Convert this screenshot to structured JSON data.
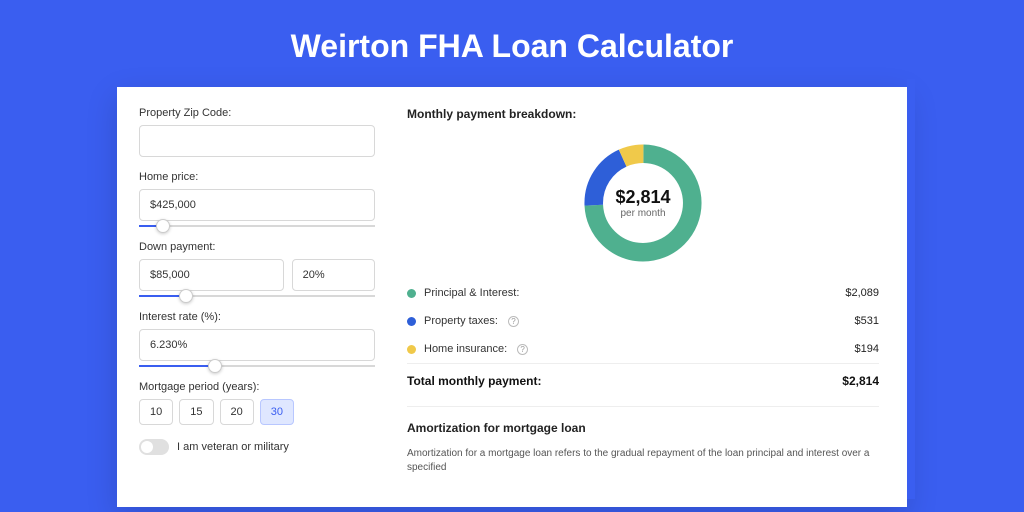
{
  "title": "Weirton FHA Loan Calculator",
  "colors": {
    "page_bg": "#3a5ef0",
    "card_bg": "#ffffff",
    "text": "#333333",
    "border": "#d8d8d8"
  },
  "form": {
    "zip": {
      "label": "Property Zip Code:",
      "value": ""
    },
    "price": {
      "label": "Home price:",
      "value": "$425,000",
      "slider_pct": 10
    },
    "down": {
      "label": "Down payment:",
      "value": "$85,000",
      "pct_value": "20%",
      "slider_pct": 20
    },
    "rate": {
      "label": "Interest rate (%):",
      "value": "6.230%",
      "slider_pct": 32
    },
    "period": {
      "label": "Mortgage period (years):",
      "options": [
        "10",
        "15",
        "20",
        "30"
      ],
      "selected": "30"
    },
    "veteran": {
      "label": "I am veteran or military",
      "checked": false
    }
  },
  "breakdown": {
    "title": "Monthly payment breakdown:",
    "donut": {
      "amount": "$2,814",
      "sub": "per month",
      "slices": [
        {
          "label": "Principal & Interest:",
          "value": "$2,089",
          "pct": 74.2,
          "color": "#4fb08f",
          "has_info": false
        },
        {
          "label": "Property taxes:",
          "value": "$531",
          "pct": 18.9,
          "color": "#2e5fd8",
          "has_info": true
        },
        {
          "label": "Home insurance:",
          "value": "$194",
          "pct": 6.9,
          "color": "#f0c94a",
          "has_info": true
        }
      ]
    },
    "total": {
      "label": "Total monthly payment:",
      "value": "$2,814"
    }
  },
  "amortization": {
    "title": "Amortization for mortgage loan",
    "text": "Amortization for a mortgage loan refers to the gradual repayment of the loan principal and interest over a specified"
  }
}
